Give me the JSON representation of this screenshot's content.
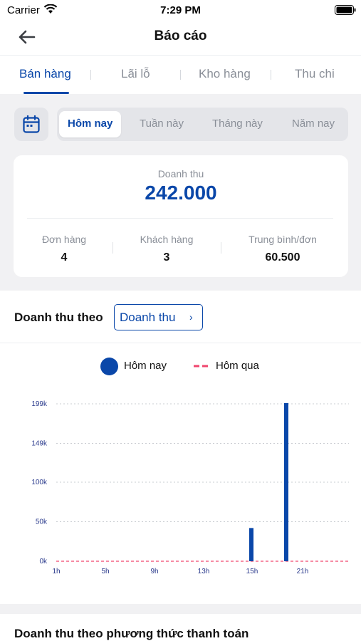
{
  "status_bar": {
    "carrier": "Carrier",
    "time": "7:29 PM"
  },
  "nav": {
    "title": "Báo cáo",
    "back_icon": "arrow-left-icon"
  },
  "tabs": [
    {
      "label": "Bán hàng",
      "active": true
    },
    {
      "label": "Lãi lỗ",
      "active": false
    },
    {
      "label": "Kho hàng",
      "active": false
    },
    {
      "label": "Thu chi",
      "active": false
    }
  ],
  "period": {
    "calendar_icon": "calendar-icon",
    "options": [
      {
        "label": "Hôm nay",
        "active": true
      },
      {
        "label": "Tuần này",
        "active": false
      },
      {
        "label": "Tháng này",
        "active": false
      },
      {
        "label": "Năm nay",
        "active": false
      }
    ]
  },
  "summary": {
    "revenue_label": "Doanh thu",
    "revenue_value": "242.000",
    "stats": [
      {
        "label": "Đơn hàng",
        "value": "4"
      },
      {
        "label": "Khách hàng",
        "value": "3"
      },
      {
        "label": "Trung bình/đơn",
        "value": "60.500"
      }
    ]
  },
  "chart_section": {
    "title": "Doanh thu theo",
    "metric_select": "Doanh thu",
    "chevron_icon": "chevron-right-icon"
  },
  "chart_data": {
    "type": "bar",
    "series": [
      {
        "name": "Hôm nay",
        "color": "#0a47a9",
        "style": "bar",
        "points": [
          {
            "x": 15,
            "y": 42000
          },
          {
            "x": 19,
            "y": 200000
          }
        ]
      },
      {
        "name": "Hôm qua",
        "color": "#f0466e",
        "style": "dashed-line",
        "points": [
          {
            "x": 1,
            "y": 0
          },
          {
            "x": 24,
            "y": 0
          }
        ]
      }
    ],
    "x_ticks": [
      {
        "v": 1,
        "label": "1h"
      },
      {
        "v": 5,
        "label": "5h"
      },
      {
        "v": 9,
        "label": "9h"
      },
      {
        "v": 13,
        "label": "13h"
      },
      {
        "v": 15,
        "label": "15h"
      },
      {
        "v": 21,
        "label": "21h"
      }
    ],
    "y_ticks": [
      {
        "v": 0,
        "label": "0k"
      },
      {
        "v": 50000,
        "label": "50k"
      },
      {
        "v": 100000,
        "label": "100k"
      },
      {
        "v": 149000,
        "label": "149k"
      },
      {
        "v": 199000,
        "label": "199k"
      }
    ],
    "xlim": [
      1,
      24
    ],
    "ylim": [
      0,
      199000
    ],
    "grid": true,
    "legend_position": "top-center"
  },
  "payment_section": {
    "title": "Doanh thu theo phương thức thanh toán"
  }
}
